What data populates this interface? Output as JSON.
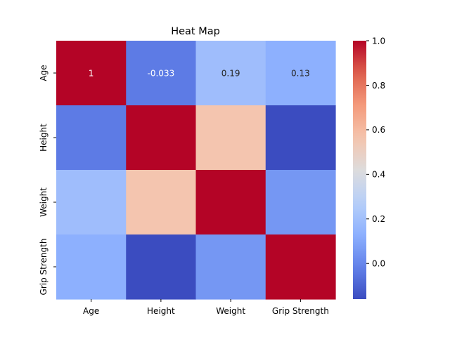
{
  "chart_data": {
    "type": "heatmap",
    "title": "Heat Map",
    "xlabel": "",
    "ylabel": "",
    "colormap": "coolwarm",
    "x_categories": [
      "Age",
      "Height",
      "Weight",
      "Grip Strength"
    ],
    "y_categories": [
      "Age",
      "Height",
      "Weight",
      "Grip Strength"
    ],
    "values": [
      [
        1,
        -0.033,
        0.19,
        0.13
      ],
      [
        -0.033,
        1,
        0.56,
        -0.16
      ],
      [
        0.19,
        0.56,
        1,
        0.05
      ],
      [
        0.13,
        -0.16,
        0.05,
        1
      ]
    ],
    "annotations": [
      [
        "1",
        "-0.033",
        "0.19",
        "0.13"
      ],
      [
        "",
        "",
        "",
        ""
      ],
      [
        "",
        "",
        "",
        ""
      ],
      [
        "",
        "",
        "",
        ""
      ]
    ],
    "colorbar": {
      "vmin": -0.16,
      "vmax": 1.0,
      "ticks": [
        0.0,
        0.2,
        0.4,
        0.6,
        0.8,
        1.0
      ],
      "tick_labels": [
        "0.0",
        "0.2",
        "0.4",
        "0.6",
        "0.8",
        "1.0"
      ]
    },
    "grid": false,
    "legend": "colorbar-right"
  }
}
